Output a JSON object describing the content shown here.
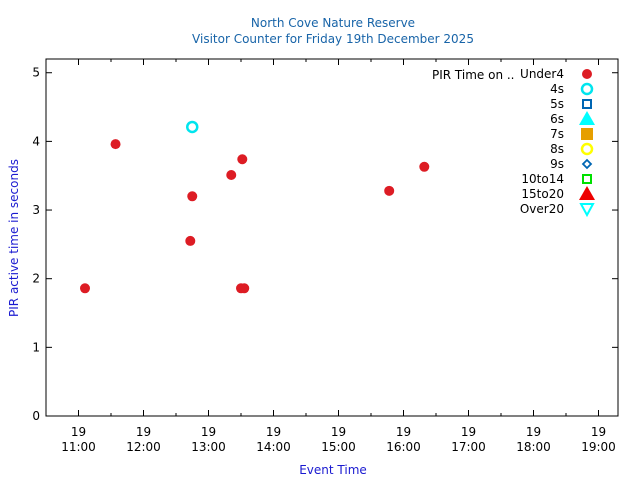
{
  "chart_data": {
    "type": "scatter",
    "title": "North Cove Nature Reserve",
    "subtitle": "Visitor Counter for Friday 19th December 2025",
    "xlabel": "Event Time",
    "ylabel": "PIR active time in seconds",
    "x_unit": "hours",
    "xlim": [
      10.5,
      19.3
    ],
    "ylim": [
      0,
      5.2
    ],
    "y_ticks": [
      0,
      1,
      2,
      3,
      4,
      5
    ],
    "x_ticks": [
      {
        "value": 11,
        "day": "19",
        "time": "11:00"
      },
      {
        "value": 12,
        "day": "19",
        "time": "12:00"
      },
      {
        "value": 13,
        "day": "19",
        "time": "13:00"
      },
      {
        "value": 14,
        "day": "19",
        "time": "14:00"
      },
      {
        "value": 15,
        "day": "19",
        "time": "15:00"
      },
      {
        "value": 16,
        "day": "19",
        "time": "16:00"
      },
      {
        "value": 17,
        "day": "19",
        "time": "17:00"
      },
      {
        "value": 18,
        "day": "19",
        "time": "18:00"
      },
      {
        "value": 19,
        "day": "19",
        "time": "19:00"
      }
    ],
    "legend_title": "PIR Time on ..",
    "legend_position": "top-right",
    "series": [
      {
        "name": "Under4",
        "marker": "circle-filled",
        "color": "#dd1c24",
        "points": [
          [
            11.1,
            1.86
          ],
          [
            11.57,
            3.96
          ],
          [
            12.72,
            2.55
          ],
          [
            12.75,
            3.2
          ],
          [
            13.35,
            3.51
          ],
          [
            13.5,
            1.86
          ],
          [
            13.55,
            1.86
          ],
          [
            13.52,
            3.74
          ],
          [
            15.78,
            3.28
          ],
          [
            16.32,
            3.63
          ]
        ]
      },
      {
        "name": "4s",
        "marker": "circle-open",
        "color": "#00e5ee",
        "points": [
          [
            12.75,
            4.21
          ]
        ]
      },
      {
        "name": "5s",
        "marker": "square-open",
        "color": "#0066b3",
        "points": []
      },
      {
        "name": "6s",
        "marker": "triangle-filled",
        "color": "#00ffff",
        "points": []
      },
      {
        "name": "7s",
        "marker": "square-filled",
        "color": "#e69f00",
        "points": []
      },
      {
        "name": "8s",
        "marker": "circle-open",
        "color": "#ffff00",
        "points": []
      },
      {
        "name": "9s",
        "marker": "diamond-open",
        "color": "#0066b3",
        "points": []
      },
      {
        "name": "10to14",
        "marker": "square-open",
        "color": "#00e000",
        "points": []
      },
      {
        "name": "15to20",
        "marker": "triangle-filled",
        "color": "#ee0000",
        "points": []
      },
      {
        "name": "Over20",
        "marker": "triangle-down-open",
        "color": "#00ffff",
        "points": []
      }
    ],
    "colors": {
      "title": "#1864a8",
      "axis_label": "#1a1ad0",
      "text": "#000000"
    }
  }
}
